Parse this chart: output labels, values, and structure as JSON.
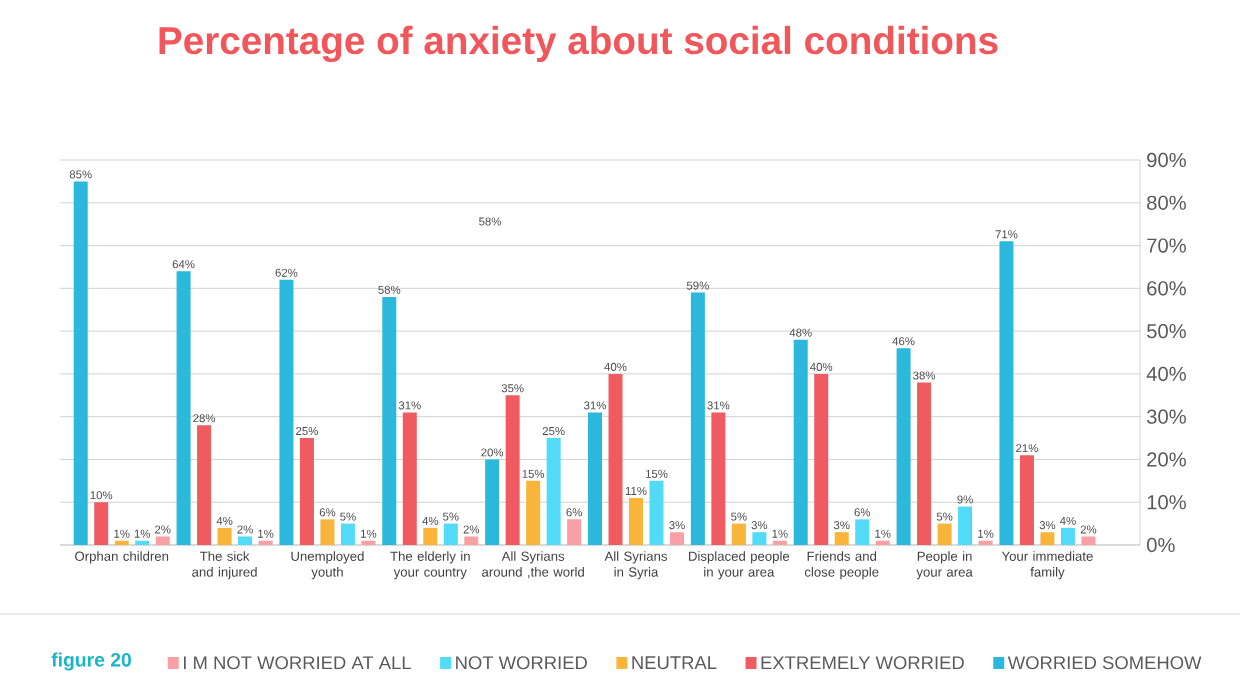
{
  "chart_data": {
    "type": "bar",
    "title": "Percentage of anxiety about social conditions",
    "categories": [
      "Orphan children",
      "The sick and injured",
      "Unemployed youth",
      "The elderly in your country",
      "All Syrians around ,the world",
      "All Syrians in Syria",
      "Displaced people in your area",
      "Friends and close people",
      "People in your area",
      "Your immediate family"
    ],
    "series": [
      {
        "name": "WORRIED SOMEHOW",
        "color": "#2bb8dc",
        "values": [
          85,
          64,
          62,
          58,
          20,
          31,
          59,
          48,
          46,
          71
        ],
        "value_labels": [
          "85%",
          "64%",
          "62%",
          "58%",
          "20%",
          "31%",
          "59%",
          "48%",
          "46%",
          "71%"
        ]
      },
      {
        "name": "EXTREMELY WORRIED",
        "color": "#ef5b60",
        "values": [
          10,
          28,
          25,
          31,
          35,
          40,
          31,
          40,
          38,
          21
        ],
        "value_labels": [
          "10%",
          "28%",
          "25%",
          "31%",
          "35%",
          "40%",
          "31%",
          "40%",
          "38%",
          "21%"
        ]
      },
      {
        "name": "NEUTRAL",
        "color": "#f8b53a",
        "values": [
          1,
          4,
          6,
          4,
          15,
          11,
          5,
          3,
          5,
          3
        ],
        "value_labels": [
          "1%",
          "4%",
          "6%",
          "4%",
          "15%",
          "11%",
          "5%",
          "3%",
          "5%",
          "3%"
        ]
      },
      {
        "name": "NOT WORRIED",
        "color": "#52dbf7",
        "values": [
          1,
          2,
          5,
          5,
          25,
          15,
          3,
          6,
          9,
          4
        ],
        "value_labels": [
          "1%",
          "2%",
          "5%",
          "5%",
          "25%",
          "15%",
          "3%",
          "6%",
          "9%",
          "4%"
        ]
      },
      {
        "name": "I M NOT WORRIED AT ALL",
        "color": "#f8a0a3",
        "values": [
          2,
          1,
          1,
          2,
          6,
          3,
          1,
          1,
          1,
          2
        ],
        "value_labels": [
          "2%",
          "1%",
          "1%",
          "2%",
          "6%",
          "3%",
          "1%",
          "1%",
          "1%",
          "2%"
        ]
      }
    ],
    "ylim": [
      0,
      90
    ],
    "yticks": [
      {
        "value": 0,
        "label": "0%"
      },
      {
        "value": 10,
        "label": "10%"
      },
      {
        "value": 20,
        "label": "20%"
      },
      {
        "value": 30,
        "label": "30%"
      },
      {
        "value": 40,
        "label": "40%"
      },
      {
        "value": 50,
        "label": "50%"
      },
      {
        "value": 60,
        "label": "60%"
      },
      {
        "value": 70,
        "label": "70%"
      },
      {
        "value": 80,
        "label": "80%"
      },
      {
        "value": 90,
        "label": "90%"
      }
    ],
    "grid": "y",
    "legend": "bottom",
    "annotations": [
      "figure 20",
      "58%"
    ]
  }
}
